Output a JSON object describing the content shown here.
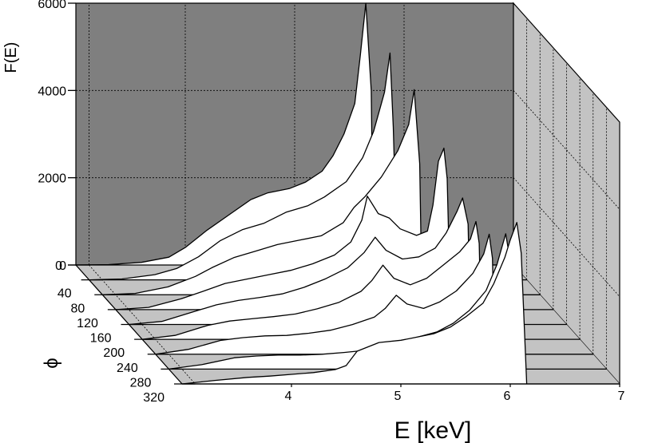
{
  "chart_data": {
    "type": "area",
    "view": "3d-waterfall",
    "ylabel": "F(E)",
    "xlabel": "E [keV]",
    "zlabel": "ϕ",
    "y_ticks": [
      "6000",
      "4000",
      "2000",
      "0"
    ],
    "x_ticks": [
      "4",
      "5",
      "6",
      "7"
    ],
    "z_ticks": [
      "0",
      "40",
      "80",
      "120",
      "160",
      "200",
      "240",
      "280",
      "320"
    ],
    "xlim": [
      3,
      7
    ],
    "ylim": [
      0,
      6000
    ],
    "zlim": [
      0,
      320
    ],
    "grid": true,
    "colors": {
      "back_wall": "#7f7f7f",
      "side_wall": "#c3c3c3",
      "floor": "#c3c3c3",
      "curve_fill": "#ffffff",
      "line": "#000000"
    },
    "series": [
      {
        "z": 0,
        "points": [
          [
            3.0,
            0
          ],
          [
            3.3,
            10
          ],
          [
            3.6,
            60
          ],
          [
            3.85,
            180
          ],
          [
            4.0,
            400
          ],
          [
            4.2,
            800
          ],
          [
            4.4,
            1150
          ],
          [
            4.6,
            1500
          ],
          [
            4.75,
            1650
          ],
          [
            4.95,
            1750
          ],
          [
            5.1,
            1900
          ],
          [
            5.25,
            2150
          ],
          [
            5.35,
            2500
          ],
          [
            5.45,
            3000
          ],
          [
            5.55,
            3700
          ],
          [
            5.6,
            4800
          ],
          [
            5.65,
            6000
          ],
          [
            5.7,
            4000
          ],
          [
            5.72,
            0
          ],
          [
            7.0,
            0
          ]
        ]
      },
      {
        "z": 40,
        "points": [
          [
            3.0,
            0
          ],
          [
            3.3,
            20
          ],
          [
            3.6,
            120
          ],
          [
            3.8,
            260
          ],
          [
            4.0,
            530
          ],
          [
            4.2,
            900
          ],
          [
            4.4,
            1150
          ],
          [
            4.6,
            1300
          ],
          [
            4.8,
            1550
          ],
          [
            5.0,
            1700
          ],
          [
            5.15,
            1900
          ],
          [
            5.35,
            2250
          ],
          [
            5.5,
            2800
          ],
          [
            5.6,
            3400
          ],
          [
            5.7,
            4300
          ],
          [
            5.75,
            5200
          ],
          [
            5.78,
            3500
          ],
          [
            5.82,
            0
          ],
          [
            7.0,
            0
          ]
        ]
      },
      {
        "z": 80,
        "points": [
          [
            3.0,
            0
          ],
          [
            3.3,
            30
          ],
          [
            3.6,
            180
          ],
          [
            3.85,
            420
          ],
          [
            4.0,
            620
          ],
          [
            4.2,
            850
          ],
          [
            4.4,
            1000
          ],
          [
            4.6,
            1150
          ],
          [
            4.8,
            1250
          ],
          [
            5.0,
            1350
          ],
          [
            5.2,
            1650
          ],
          [
            5.3,
            2000
          ],
          [
            5.4,
            2250
          ],
          [
            5.55,
            2700
          ],
          [
            5.7,
            3300
          ],
          [
            5.8,
            3900
          ],
          [
            5.85,
            4700
          ],
          [
            5.9,
            3000
          ],
          [
            5.92,
            0
          ],
          [
            7.0,
            0
          ]
        ]
      },
      {
        "z": 120,
        "points": [
          [
            3.0,
            0
          ],
          [
            3.3,
            50
          ],
          [
            3.6,
            250
          ],
          [
            3.8,
            420
          ],
          [
            4.0,
            600
          ],
          [
            4.2,
            700
          ],
          [
            4.4,
            800
          ],
          [
            4.6,
            900
          ],
          [
            4.8,
            1050
          ],
          [
            5.0,
            1250
          ],
          [
            5.15,
            1550
          ],
          [
            5.25,
            2050
          ],
          [
            5.3,
            2600
          ],
          [
            5.4,
            2200
          ],
          [
            5.5,
            2100
          ],
          [
            5.6,
            1850
          ],
          [
            5.75,
            1700
          ],
          [
            5.85,
            1800
          ],
          [
            5.9,
            2400
          ],
          [
            5.95,
            3400
          ],
          [
            6.0,
            3700
          ],
          [
            6.03,
            3000
          ],
          [
            6.06,
            0
          ],
          [
            7.0,
            0
          ]
        ]
      },
      {
        "z": 160,
        "points": [
          [
            3.0,
            0
          ],
          [
            3.3,
            70
          ],
          [
            3.6,
            300
          ],
          [
            3.8,
            450
          ],
          [
            4.0,
            550
          ],
          [
            4.2,
            620
          ],
          [
            4.4,
            700
          ],
          [
            4.6,
            850
          ],
          [
            4.8,
            1050
          ],
          [
            5.0,
            1300
          ],
          [
            5.15,
            1650
          ],
          [
            5.25,
            2000
          ],
          [
            5.35,
            1700
          ],
          [
            5.5,
            1500
          ],
          [
            5.65,
            1550
          ],
          [
            5.8,
            1750
          ],
          [
            5.9,
            2100
          ],
          [
            6.0,
            2600
          ],
          [
            6.05,
            2900
          ],
          [
            6.1,
            2300
          ],
          [
            6.12,
            0
          ],
          [
            7.0,
            0
          ]
        ]
      },
      {
        "z": 200,
        "points": [
          [
            3.0,
            0
          ],
          [
            3.3,
            90
          ],
          [
            3.6,
            320
          ],
          [
            3.8,
            420
          ],
          [
            4.0,
            470
          ],
          [
            4.2,
            520
          ],
          [
            4.4,
            580
          ],
          [
            4.6,
            700
          ],
          [
            4.8,
            850
          ],
          [
            5.0,
            1100
          ],
          [
            5.1,
            1350
          ],
          [
            5.2,
            1700
          ],
          [
            5.3,
            1400
          ],
          [
            5.45,
            1250
          ],
          [
            5.6,
            1400
          ],
          [
            5.75,
            1700
          ],
          [
            5.9,
            2000
          ],
          [
            6.0,
            2300
          ],
          [
            6.05,
            2700
          ],
          [
            6.08,
            2200
          ],
          [
            6.1,
            0
          ],
          [
            7.0,
            0
          ]
        ]
      },
      {
        "z": 240,
        "points": [
          [
            3.0,
            0
          ],
          [
            3.3,
            110
          ],
          [
            3.6,
            320
          ],
          [
            3.8,
            380
          ],
          [
            4.0,
            420
          ],
          [
            4.2,
            430
          ],
          [
            4.4,
            480
          ],
          [
            4.6,
            550
          ],
          [
            4.8,
            680
          ],
          [
            5.0,
            850
          ],
          [
            5.1,
            1050
          ],
          [
            5.2,
            1350
          ],
          [
            5.3,
            1150
          ],
          [
            5.45,
            1050
          ],
          [
            5.6,
            1200
          ],
          [
            5.75,
            1450
          ],
          [
            5.9,
            1850
          ],
          [
            6.0,
            2300
          ],
          [
            6.05,
            2750
          ],
          [
            6.08,
            2200
          ],
          [
            6.1,
            0
          ],
          [
            7.0,
            0
          ]
        ]
      },
      {
        "z": 280,
        "points": [
          [
            3.0,
            0
          ],
          [
            3.3,
            100
          ],
          [
            3.6,
            260
          ],
          [
            3.8,
            300
          ],
          [
            4.0,
            320
          ],
          [
            4.2,
            320
          ],
          [
            4.4,
            340
          ],
          [
            4.6,
            380
          ],
          [
            4.8,
            430
          ],
          [
            5.0,
            520
          ],
          [
            5.15,
            650
          ],
          [
            5.3,
            750
          ],
          [
            5.45,
            850
          ],
          [
            5.6,
            1050
          ],
          [
            5.75,
            1350
          ],
          [
            5.9,
            1800
          ],
          [
            6.0,
            2400
          ],
          [
            6.08,
            3100
          ],
          [
            6.12,
            2500
          ],
          [
            6.15,
            0
          ],
          [
            7.0,
            0
          ]
        ]
      },
      {
        "z": 320,
        "points": [
          [
            3.0,
            0
          ],
          [
            3.3,
            80
          ],
          [
            3.6,
            150
          ],
          [
            3.8,
            180
          ],
          [
            4.0,
            220
          ],
          [
            4.2,
            260
          ],
          [
            4.4,
            330
          ],
          [
            4.5,
            420
          ],
          [
            4.6,
            750
          ],
          [
            4.8,
            950
          ],
          [
            5.0,
            1000
          ],
          [
            5.1,
            1050
          ],
          [
            5.2,
            1100
          ],
          [
            5.3,
            1150
          ],
          [
            5.45,
            1300
          ],
          [
            5.6,
            1550
          ],
          [
            5.75,
            1850
          ],
          [
            5.85,
            2300
          ],
          [
            5.95,
            2900
          ],
          [
            6.0,
            3300
          ],
          [
            6.06,
            3700
          ],
          [
            6.1,
            3000
          ],
          [
            6.15,
            0
          ],
          [
            7.0,
            0
          ]
        ]
      }
    ]
  }
}
